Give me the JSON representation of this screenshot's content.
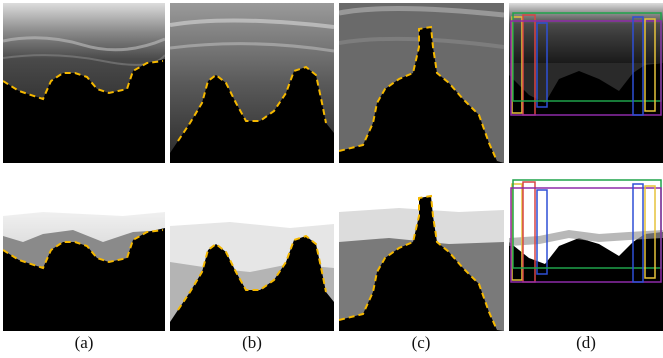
{
  "figure": {
    "captions": [
      "(a)",
      "(b)",
      "(c)",
      "(d)"
    ],
    "contour_color": "#F5B800",
    "box_colors": [
      "#E6C23A",
      "#D64545",
      "#2E4FD6",
      "#1FA34A",
      "#8E2AA8"
    ]
  }
}
